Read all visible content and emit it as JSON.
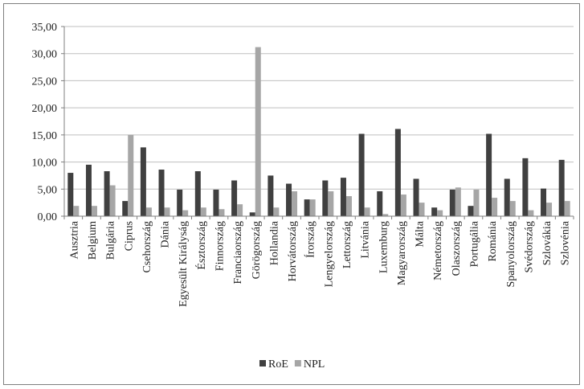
{
  "chart_data": {
    "type": "bar",
    "title": "",
    "xlabel": "",
    "ylabel": "",
    "ylim": [
      0,
      35
    ],
    "yticks": [
      "0,00",
      "5,00",
      "10,00",
      "15,00",
      "20,00",
      "25,00",
      "30,00",
      "35,00"
    ],
    "grid": true,
    "legend_position": "bottom",
    "categories": [
      "Ausztria",
      "Belgium",
      "Bulgária",
      "Ciprus",
      "Csehország",
      "Dánia",
      "Egyesült Királyság",
      "Észtország",
      "Finnország",
      "Franciaország",
      "Görögország",
      "Hollandia",
      "Horvátország",
      "Írország",
      "Lengyelország",
      "Lettország",
      "Litvánia",
      "Luxemburg",
      "Magyarország",
      "Málta",
      "Németország",
      "Olaszország",
      "Portugália",
      "Románia",
      "Spanyolország",
      "Svédország",
      "Szlovákia",
      "Szlovénia"
    ],
    "series": [
      {
        "name": "RoE",
        "color": "#404040",
        "values": [
          8.0,
          9.5,
          8.3,
          2.8,
          12.7,
          8.6,
          4.9,
          8.3,
          4.9,
          6.6,
          0.7,
          7.5,
          6.0,
          3.1,
          6.6,
          7.1,
          15.2,
          4.6,
          16.1,
          6.9,
          1.6,
          4.9,
          1.9,
          15.2,
          6.9,
          10.7,
          5.1,
          10.4
        ]
      },
      {
        "name": "NPL",
        "color": "#a6a6a6",
        "values": [
          1.9,
          1.9,
          5.7,
          15.0,
          1.6,
          1.6,
          1.1,
          1.6,
          1.3,
          2.2,
          31.2,
          1.6,
          4.6,
          3.1,
          4.6,
          3.7,
          1.6,
          0.4,
          4.0,
          2.5,
          1.1,
          5.3,
          4.9,
          3.4,
          2.8,
          1.1,
          2.5,
          2.8
        ]
      }
    ]
  }
}
